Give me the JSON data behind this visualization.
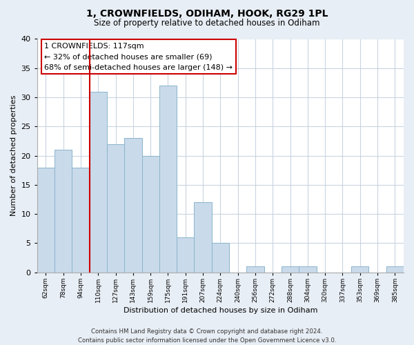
{
  "title": "1, CROWNFIELDS, ODIHAM, HOOK, RG29 1PL",
  "subtitle": "Size of property relative to detached houses in Odiham",
  "xlabel": "Distribution of detached houses by size in Odiham",
  "ylabel": "Number of detached properties",
  "bar_labels": [
    "62sqm",
    "78sqm",
    "94sqm",
    "110sqm",
    "127sqm",
    "143sqm",
    "159sqm",
    "175sqm",
    "191sqm",
    "207sqm",
    "224sqm",
    "240sqm",
    "256sqm",
    "272sqm",
    "288sqm",
    "304sqm",
    "320sqm",
    "337sqm",
    "353sqm",
    "369sqm",
    "385sqm"
  ],
  "bar_values": [
    18,
    21,
    18,
    31,
    22,
    23,
    20,
    32,
    6,
    12,
    5,
    0,
    1,
    0,
    1,
    1,
    0,
    0,
    1,
    0,
    1
  ],
  "bar_color": "#c9daea",
  "bar_edge_color": "#8ab4cc",
  "highlight_bar_index": 3,
  "highlight_color": "#cc0000",
  "ylim": [
    0,
    40
  ],
  "yticks": [
    0,
    5,
    10,
    15,
    20,
    25,
    30,
    35,
    40
  ],
  "annotation_title": "1 CROWNFIELDS: 117sqm",
  "annotation_line1": "← 32% of detached houses are smaller (69)",
  "annotation_line2": "68% of semi-detached houses are larger (148) →",
  "annotation_box_color": "#ffffff",
  "annotation_box_edge": "#cc0000",
  "footer_line1": "Contains HM Land Registry data © Crown copyright and database right 2024.",
  "footer_line2": "Contains public sector information licensed under the Open Government Licence v3.0.",
  "bg_color": "#e8eef5",
  "plot_bg_color": "#ffffff",
  "grid_color": "#c8d4e0"
}
